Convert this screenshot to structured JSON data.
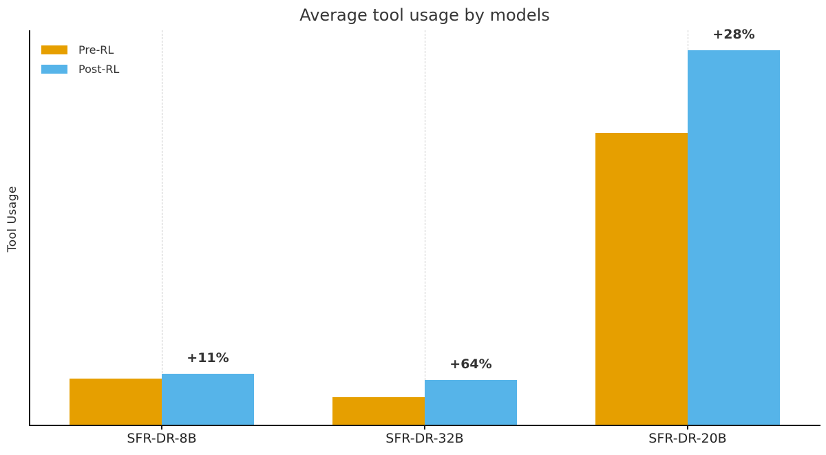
{
  "chart_data": {
    "type": "bar",
    "title": "Average tool usage by models",
    "xlabel": "",
    "ylabel": "Tool Usage",
    "categories": [
      "SFR-DR-8B",
      "SFR-DR-32B",
      "SFR-DR-20B"
    ],
    "series": [
      {
        "name": "Pre-RL",
        "color": "#E69F00",
        "values": [
          3.7,
          2.2,
          23.4
        ]
      },
      {
        "name": "Post-RL",
        "color": "#56B4E9",
        "values": [
          4.1,
          3.6,
          30.0
        ]
      }
    ],
    "annotations": [
      {
        "category": "SFR-DR-8B",
        "label": "+11%"
      },
      {
        "category": "SFR-DR-32B",
        "label": "+64%"
      },
      {
        "category": "SFR-DR-20B",
        "label": "+28%"
      }
    ],
    "ylim": [
      0,
      31.6
    ],
    "yticks_visible": false,
    "grid": "vertical-dashed",
    "grid_color": "#c9c9c9",
    "legend_position": "upper-left",
    "legend_frame": false,
    "title_color": "#363636",
    "annotation_color": "#333333",
    "axis_color": "#1a1a1a"
  }
}
